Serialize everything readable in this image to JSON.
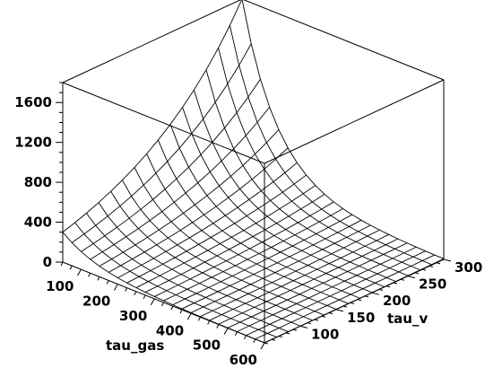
{
  "chart_data": {
    "type": "surface",
    "x": {
      "label": "tau_gas",
      "range": [
        50,
        600
      ],
      "ticks": [
        100,
        200,
        300,
        400,
        500,
        600
      ],
      "grid_values": [
        50,
        75,
        100,
        125,
        150,
        175,
        200,
        225,
        250,
        275,
        300,
        325,
        350,
        375,
        400,
        425,
        450,
        475,
        500,
        525,
        550,
        575,
        600
      ]
    },
    "y": {
      "label": "tau_v",
      "range": [
        50,
        300
      ],
      "ticks": [
        100,
        150,
        200,
        250,
        300
      ],
      "grid_values": [
        50,
        67,
        83,
        100,
        117,
        133,
        150,
        167,
        183,
        200,
        217,
        233,
        250,
        267,
        283,
        300
      ]
    },
    "z": {
      "label": "",
      "range": [
        0,
        1800
      ],
      "ticks": [
        0,
        400,
        800,
        1200,
        1600
      ]
    },
    "surface_model": {
      "peak": [
        50,
        300,
        1800
      ],
      "minimum": [
        600,
        50,
        0
      ],
      "shape": "decays exponentially with tau_gas and grows with tau_v"
    },
    "bounding_box": true,
    "line_color": "#000000",
    "background": "#ffffff"
  }
}
